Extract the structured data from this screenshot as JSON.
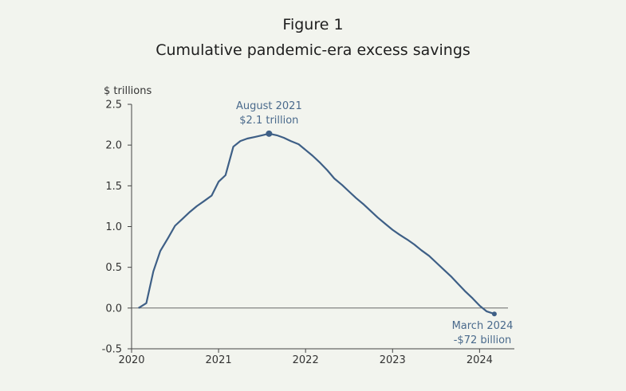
{
  "figure_label": "Figure 1",
  "title": "Cumulative pandemic-era excess savings",
  "chart_data": {
    "type": "line",
    "title": "Cumulative pandemic-era excess savings",
    "ylabel": "$ trillions",
    "xlabel": "",
    "ylim": [
      -0.5,
      2.5
    ],
    "xlim": [
      2020.0,
      2024.4
    ],
    "yticks": [
      "2.5",
      "2.0",
      "1.5",
      "1.0",
      "0.5",
      "0.0",
      "-0.5"
    ],
    "xticks": [
      "2020",
      "2021",
      "2022",
      "2023",
      "2024"
    ],
    "color": "#3e5f86",
    "series": [
      {
        "x": [
          2020.08,
          2020.17,
          2020.25,
          2020.33,
          2020.42,
          2020.5,
          2020.58,
          2020.67,
          2020.75,
          2020.83,
          2020.92,
          2021.0,
          2021.08,
          2021.17,
          2021.25,
          2021.33,
          2021.42,
          2021.5,
          2021.58,
          2021.67,
          2021.75,
          2021.83,
          2021.92,
          2022.0,
          2022.08,
          2022.17,
          2022.25,
          2022.33,
          2022.42,
          2022.5,
          2022.58,
          2022.67,
          2022.75,
          2022.83,
          2022.92,
          2023.0,
          2023.08,
          2023.17,
          2023.25,
          2023.33,
          2023.42,
          2023.5,
          2023.58,
          2023.67,
          2023.75,
          2023.83,
          2023.92,
          2024.0,
          2024.08,
          2024.17
        ],
        "values": [
          0.0,
          0.06,
          0.45,
          0.7,
          0.86,
          1.01,
          1.09,
          1.18,
          1.25,
          1.31,
          1.38,
          1.55,
          1.63,
          1.98,
          2.05,
          2.08,
          2.1,
          2.12,
          2.14,
          2.12,
          2.09,
          2.05,
          2.01,
          1.94,
          1.87,
          1.78,
          1.69,
          1.59,
          1.51,
          1.43,
          1.35,
          1.27,
          1.19,
          1.11,
          1.03,
          0.96,
          0.9,
          0.84,
          0.78,
          0.71,
          0.64,
          0.56,
          0.48,
          0.39,
          0.3,
          0.21,
          0.12,
          0.03,
          -0.04,
          -0.072
        ]
      }
    ],
    "annotations": [
      {
        "text": [
          "August 2021",
          "$2.1 trillion"
        ],
        "x": 2021.58,
        "y": 2.14
      },
      {
        "text": [
          "March 2024",
          "-$72 billion"
        ],
        "x": 2024.17,
        "y": -0.072
      }
    ]
  }
}
